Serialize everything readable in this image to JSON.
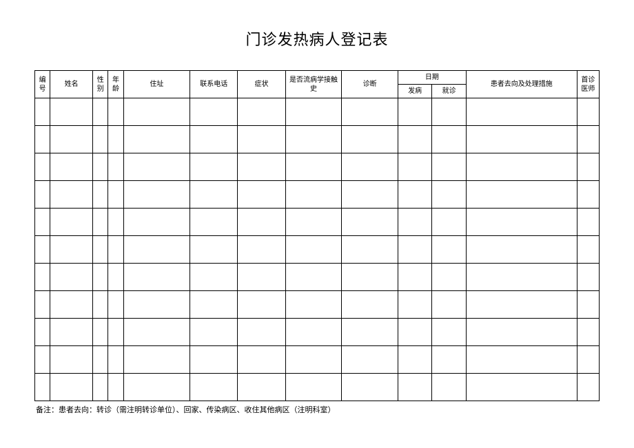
{
  "title": "门诊发热病人登记表",
  "table": {
    "columns": {
      "num": "编号",
      "name": "姓名",
      "gender": "性别",
      "age": "年龄",
      "address": "住址",
      "phone": "联系电话",
      "symptom": "症状",
      "epi_history": "是否流病学接触史",
      "diagnosis": "诊断",
      "date": "日期",
      "date_onset": "发病",
      "date_visit": "就诊",
      "disposition": "患者去向及处理措施",
      "doctor": "首诊医师"
    },
    "row_count": 11,
    "border_color": "#000000",
    "background_color": "#ffffff",
    "header_fontsize": 10,
    "body_row_height": 40
  },
  "note": "备注：患者去向：转诊（需注明转诊单位）、回家、传染病区、收住其他病区（注明科室）"
}
